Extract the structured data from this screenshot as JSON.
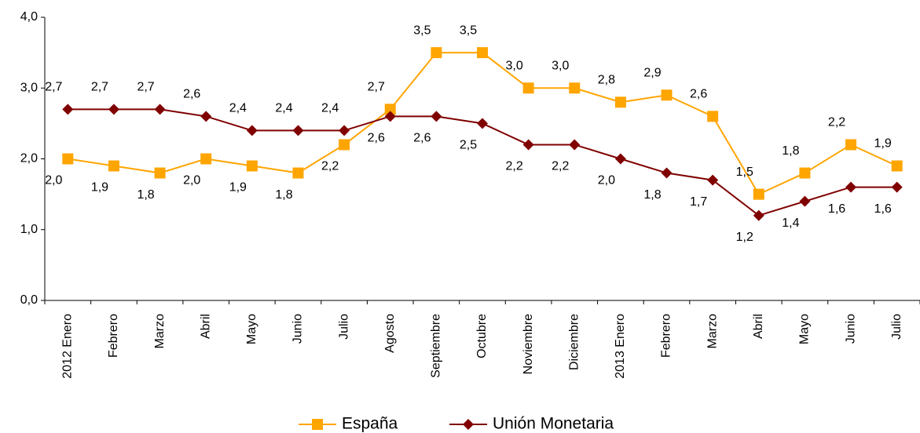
{
  "chart_data": {
    "type": "line",
    "categories": [
      "2012 Enero",
      "Febrero",
      "Marzo",
      "Abril",
      "Mayo",
      "Junio",
      "Julio",
      "Agosto",
      "Septiembre",
      "Octubre",
      "Noviembre",
      "Diciembre",
      "2013 Enero",
      "Febrero",
      "Marzo",
      "Abril",
      "Mayo",
      "Junio",
      "Julio"
    ],
    "series": [
      {
        "name": "España",
        "color": "#ffa500",
        "marker": "square",
        "values": [
          2.0,
          1.9,
          1.8,
          2.0,
          1.9,
          1.8,
          2.2,
          2.7,
          3.5,
          3.5,
          3.0,
          3.0,
          2.8,
          2.9,
          2.6,
          1.5,
          1.8,
          2.2,
          1.9
        ],
        "value_labels": [
          "2,0",
          "1,9",
          "1,8",
          "2,0",
          "1,9",
          "1,8",
          "2,2",
          "2,7",
          "3,5",
          "3,5",
          "3,0",
          "3,0",
          "2,8",
          "2,9",
          "2,6",
          "1,5",
          "1,8",
          "2,2",
          "1,9"
        ]
      },
      {
        "name": "Unión Monetaria",
        "color": "#800000",
        "marker": "diamond",
        "values": [
          2.7,
          2.7,
          2.7,
          2.6,
          2.4,
          2.4,
          2.4,
          2.6,
          2.6,
          2.5,
          2.2,
          2.2,
          2.0,
          1.8,
          1.7,
          1.2,
          1.4,
          1.6,
          1.6
        ],
        "value_labels": [
          "2,7",
          "2,7",
          "2,7",
          "2,6",
          "2,4",
          "2,4",
          "2,4",
          "2,6",
          "2,6",
          "2,5",
          "2,2",
          "2,2",
          "2,0",
          "1,8",
          "1,7",
          "1,2",
          "1,4",
          "1,6",
          "1,6"
        ]
      }
    ],
    "ylim": [
      0,
      4
    ],
    "yticks": [
      {
        "value": 0,
        "label": "0,0"
      },
      {
        "value": 1,
        "label": "1,0"
      },
      {
        "value": 2,
        "label": "2,0"
      },
      {
        "value": 3,
        "label": "3,0"
      },
      {
        "value": 4,
        "label": "4,0"
      }
    ],
    "legend": "bottom"
  }
}
